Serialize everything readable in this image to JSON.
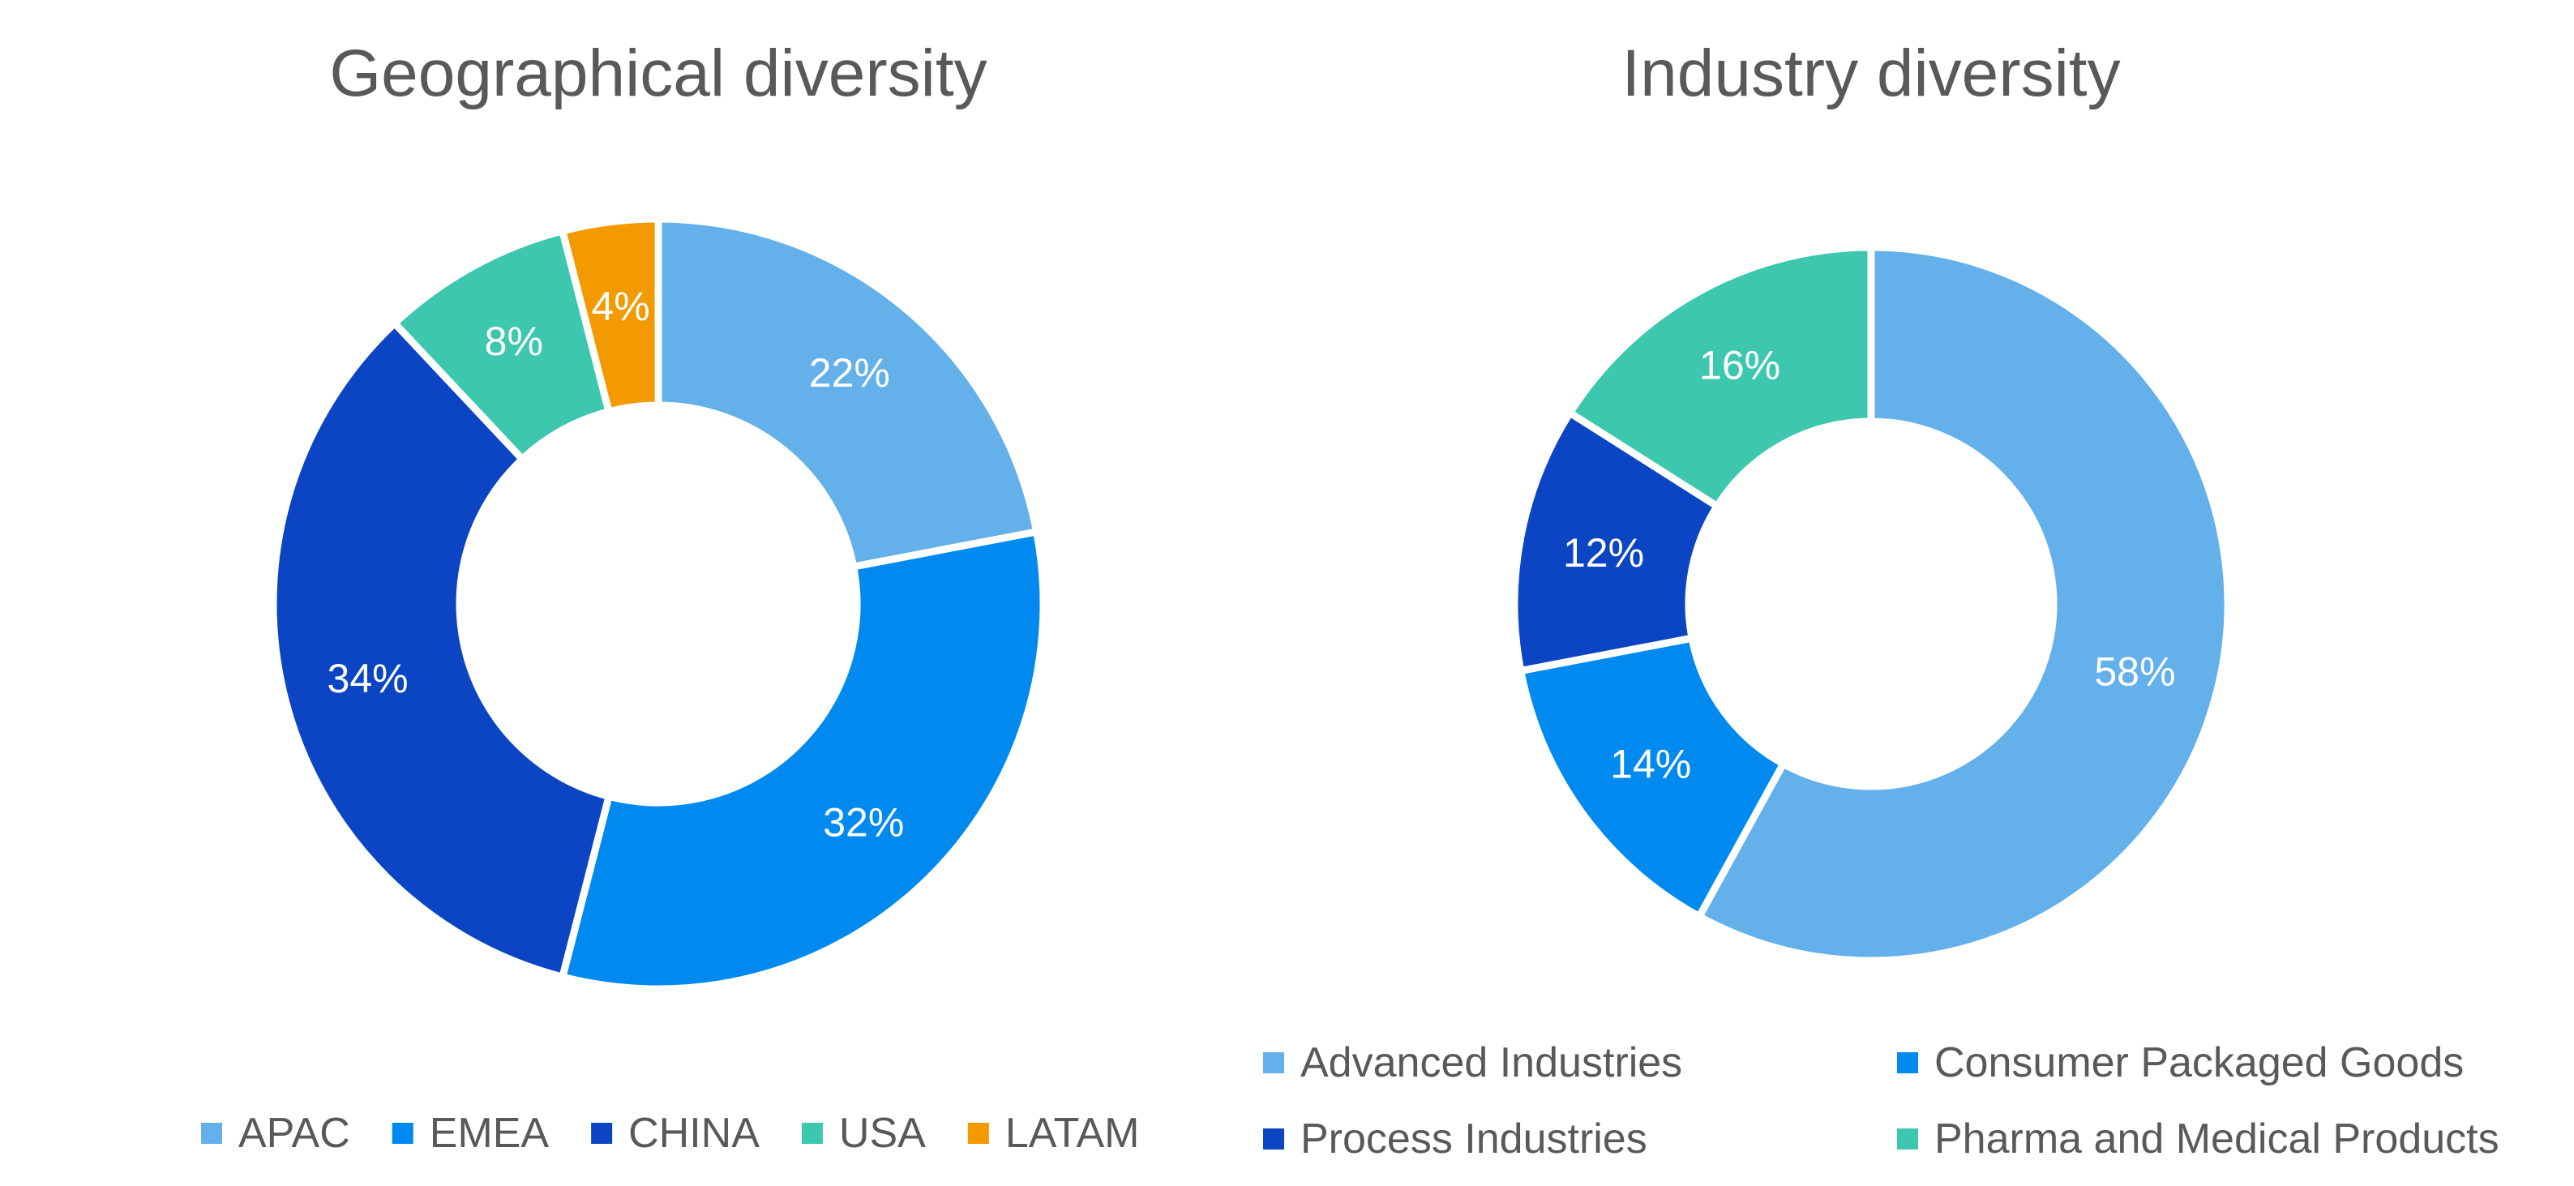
{
  "chart_data": [
    {
      "type": "donut",
      "title": "Geographical diversity",
      "start_angle_deg": 0,
      "direction": "clockwise",
      "categories": [
        "APAC",
        "EMEA",
        "CHINA",
        "USA",
        "LATAM"
      ],
      "values": [
        22,
        32,
        34,
        8,
        4
      ],
      "labels": [
        "22%",
        "32%",
        "34%",
        "8%",
        "4%"
      ],
      "colors": [
        "#63B0EA",
        "#008AF0",
        "#0C45C3",
        "#3CC7AE",
        "#F29A00"
      ],
      "legend_position": "bottom",
      "legend_layout": "single-row"
    },
    {
      "type": "donut",
      "title": "Industry diversity",
      "start_angle_deg": 0,
      "direction": "clockwise",
      "categories": [
        "Advanced Industries",
        "Consumer Packaged Goods",
        "Process Industries",
        "Pharma and Medical Products"
      ],
      "values": [
        58,
        14,
        12,
        16
      ],
      "labels": [
        "58%",
        "14%",
        "12%",
        "16%"
      ],
      "colors": [
        "#63B0EA",
        "#008AF0",
        "#0C45C3",
        "#3CC7AE"
      ],
      "legend_position": "bottom",
      "legend_layout": "two-column-grid"
    }
  ]
}
